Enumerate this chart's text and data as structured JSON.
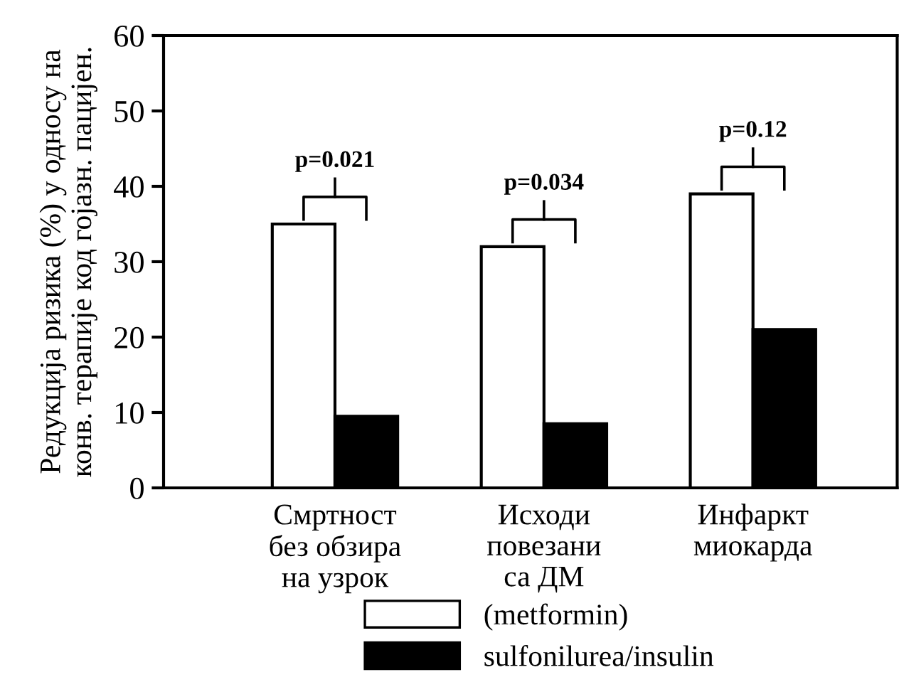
{
  "chart_data": {
    "type": "bar",
    "ylabel": "Редукција ризика (%) у односу на\nконв. терапије код гојазн. пацијен.",
    "categories": [
      "Смртност\nбез обзира\nна узрок",
      "Исходи\nповезани\nса ДМ",
      "Инфаркт\nмиокарда"
    ],
    "series": [
      {
        "name": "(metformin)",
        "color": "#ffffff",
        "values": [
          35,
          32,
          39
        ]
      },
      {
        "name": "sulfonilurea/insulin",
        "color": "#000000",
        "values": [
          9.5,
          8.5,
          21
        ]
      }
    ],
    "ylim": [
      0,
      60
    ],
    "yticks": [
      0,
      10,
      20,
      30,
      40,
      50,
      60
    ],
    "annotations": [
      "p=0.021",
      "p=0.034",
      "p=0.12"
    ],
    "grid": false,
    "legend": "bottom"
  }
}
